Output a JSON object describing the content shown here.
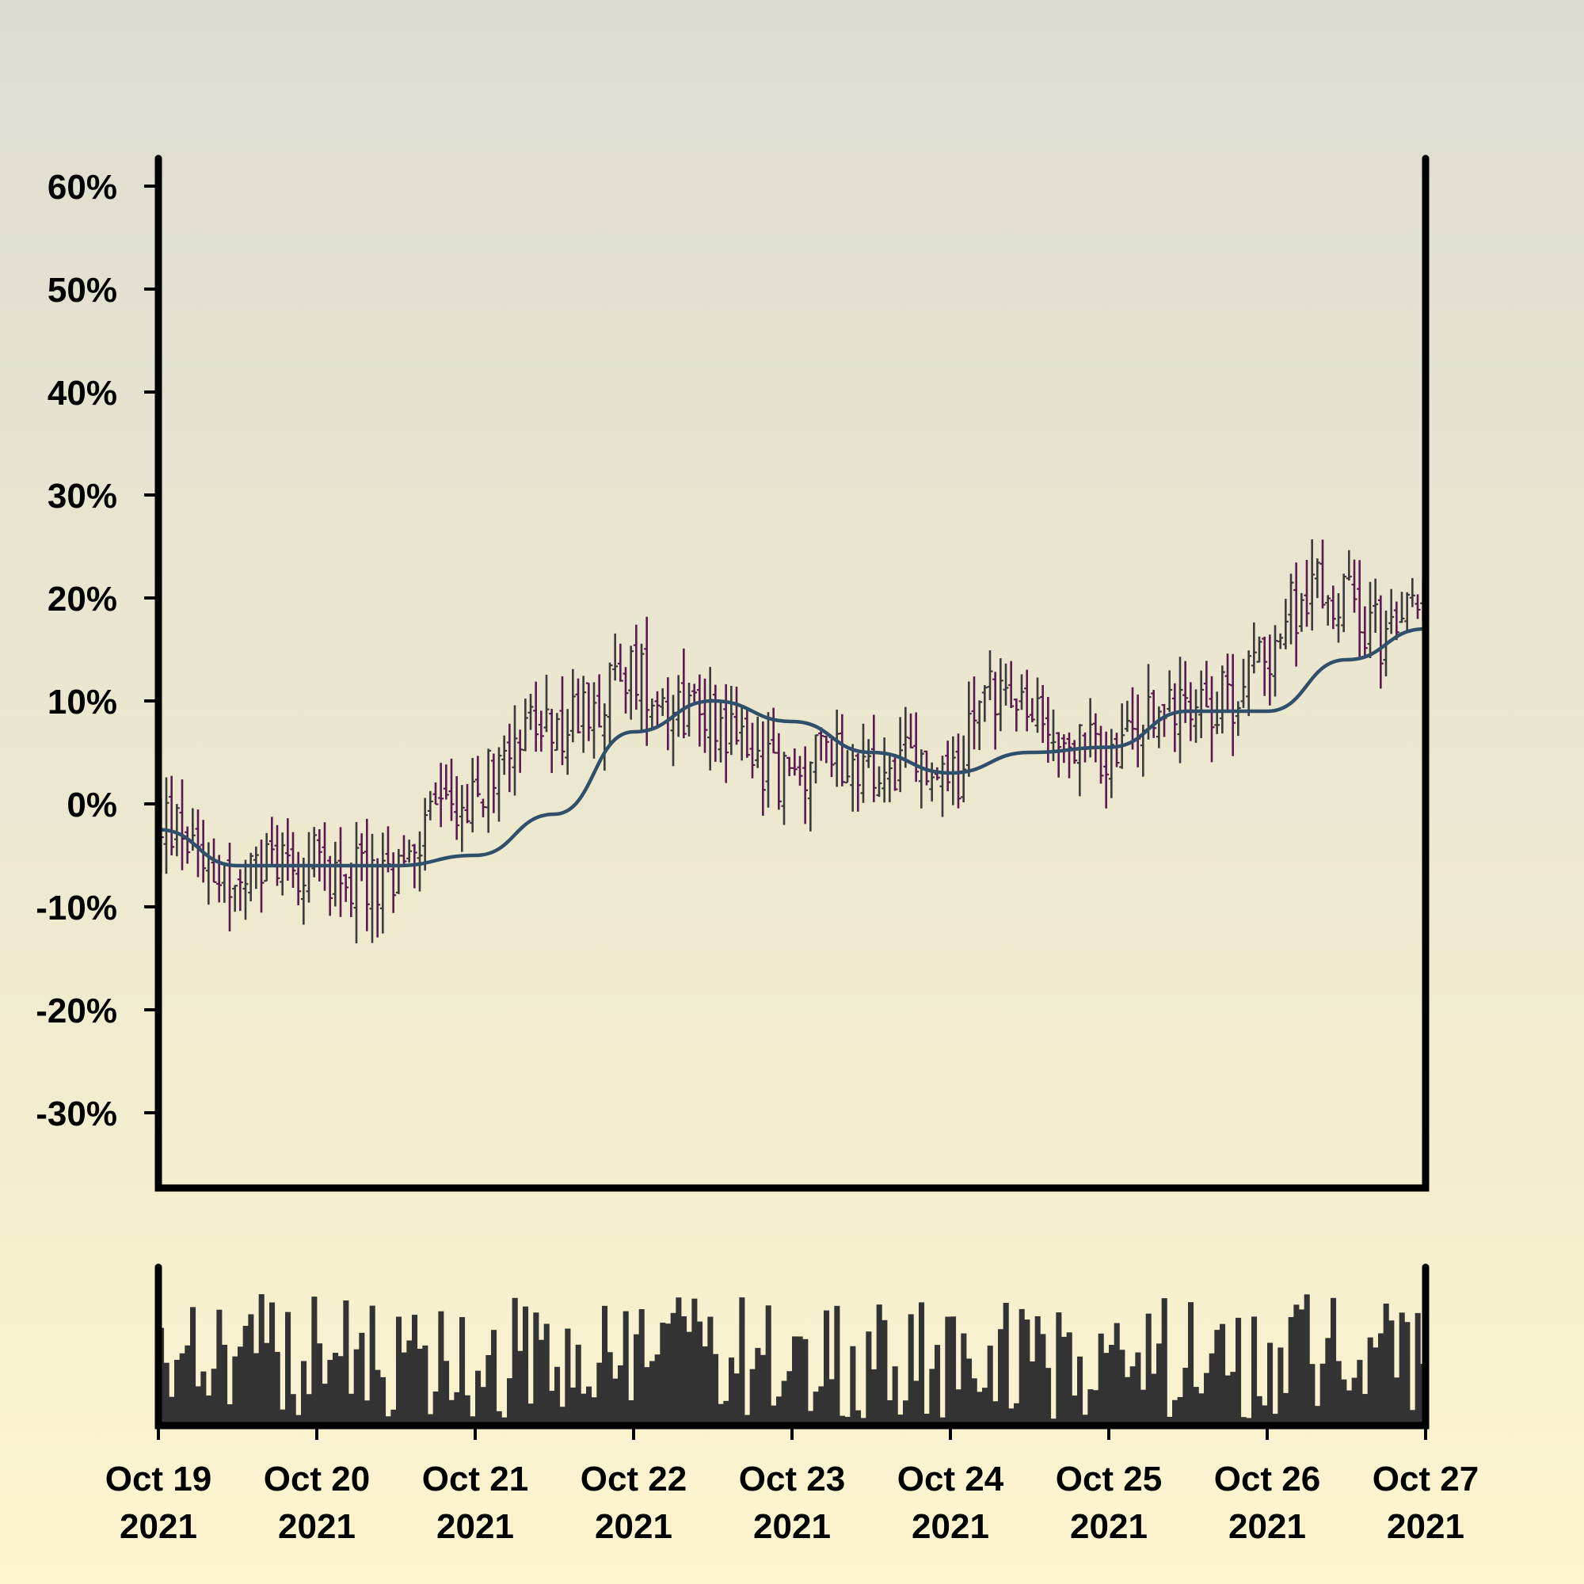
{
  "chart_data": {
    "type": "ohlc",
    "y_unit": "%",
    "ylim": [
      -37,
      63
    ],
    "y_ticks": [
      "60%",
      "50%",
      "40%",
      "30%",
      "20%",
      "10%",
      "0%",
      "-10%",
      "-20%",
      "-30%"
    ],
    "y_tick_values": [
      60,
      50,
      40,
      30,
      20,
      10,
      0,
      -10,
      -20,
      -30
    ],
    "x_range": [
      "2021-10-19",
      "2021-10-27"
    ],
    "x_ticks": [
      {
        "date": "2021-10-19",
        "line1": "Oct 19",
        "line2": "2021"
      },
      {
        "date": "2021-10-20",
        "line1": "Oct 20",
        "line2": "2021"
      },
      {
        "date": "2021-10-21",
        "line1": "Oct 21",
        "line2": "2021"
      },
      {
        "date": "2021-10-22",
        "line1": "Oct 22",
        "line2": "2021"
      },
      {
        "date": "2021-10-23",
        "line1": "Oct 23",
        "line2": "2021"
      },
      {
        "date": "2021-10-24",
        "line1": "Oct 24",
        "line2": "2021"
      },
      {
        "date": "2021-10-25",
        "line1": "Oct 25",
        "line2": "2021"
      },
      {
        "date": "2021-10-26",
        "line1": "Oct 26",
        "line2": "2021"
      },
      {
        "date": "2021-10-27",
        "line1": "Oct 27",
        "line2": "2021"
      }
    ],
    "close_trend": [
      {
        "date": "2021-10-19 00:00",
        "value": -2
      },
      {
        "date": "2021-10-19 06:00",
        "value": -3
      },
      {
        "date": "2021-10-19 12:00",
        "value": -9
      },
      {
        "date": "2021-10-19 18:00",
        "value": -5
      },
      {
        "date": "2021-10-20 00:00",
        "value": -6
      },
      {
        "date": "2021-10-20 06:00",
        "value": -7
      },
      {
        "date": "2021-10-20 12:00",
        "value": -8
      },
      {
        "date": "2021-10-20 18:00",
        "value": 0
      },
      {
        "date": "2021-10-21 00:00",
        "value": 0
      },
      {
        "date": "2021-10-21 06:00",
        "value": 8
      },
      {
        "date": "2021-10-21 12:00",
        "value": 6
      },
      {
        "date": "2021-10-21 18:00",
        "value": 10
      },
      {
        "date": "2021-10-22 00:00",
        "value": 13
      },
      {
        "date": "2021-10-22 06:00",
        "value": 10
      },
      {
        "date": "2021-10-22 12:00",
        "value": 9
      },
      {
        "date": "2021-10-22 18:00",
        "value": 5
      },
      {
        "date": "2021-10-23 00:00",
        "value": 2
      },
      {
        "date": "2021-10-23 06:00",
        "value": 6
      },
      {
        "date": "2021-10-23 12:00",
        "value": 2
      },
      {
        "date": "2021-10-23 18:00",
        "value": 4
      },
      {
        "date": "2021-10-24 00:00",
        "value": 1
      },
      {
        "date": "2021-10-24 06:00",
        "value": 12
      },
      {
        "date": "2021-10-24 12:00",
        "value": 8
      },
      {
        "date": "2021-10-24 18:00",
        "value": 6
      },
      {
        "date": "2021-10-25 00:00",
        "value": 4
      },
      {
        "date": "2021-10-25 06:00",
        "value": 8
      },
      {
        "date": "2021-10-25 12:00",
        "value": 11
      },
      {
        "date": "2021-10-25 18:00",
        "value": 10
      },
      {
        "date": "2021-10-26 00:00",
        "value": 15
      },
      {
        "date": "2021-10-26 06:00",
        "value": 21
      },
      {
        "date": "2021-10-26 12:00",
        "value": 20
      },
      {
        "date": "2021-10-26 18:00",
        "value": 16
      },
      {
        "date": "2021-10-27 00:00",
        "value": 20
      }
    ],
    "moving_average": [
      {
        "date": "2021-10-19 00:00",
        "value": -2.5
      },
      {
        "date": "2021-10-19 12:00",
        "value": -6
      },
      {
        "date": "2021-10-20 00:00",
        "value": -6
      },
      {
        "date": "2021-10-20 12:00",
        "value": -6
      },
      {
        "date": "2021-10-21 00:00",
        "value": -5
      },
      {
        "date": "2021-10-21 12:00",
        "value": -1
      },
      {
        "date": "2021-10-22 00:00",
        "value": 7
      },
      {
        "date": "2021-10-22 12:00",
        "value": 10
      },
      {
        "date": "2021-10-23 00:00",
        "value": 8
      },
      {
        "date": "2021-10-23 12:00",
        "value": 5
      },
      {
        "date": "2021-10-24 00:00",
        "value": 3
      },
      {
        "date": "2021-10-24 12:00",
        "value": 5
      },
      {
        "date": "2021-10-25 00:00",
        "value": 5.5
      },
      {
        "date": "2021-10-25 12:00",
        "value": 9
      },
      {
        "date": "2021-10-26 00:00",
        "value": 9
      },
      {
        "date": "2021-10-26 12:00",
        "value": 14
      },
      {
        "date": "2021-10-27 00:00",
        "value": 17
      }
    ],
    "colors": {
      "up": "#3a3a3a",
      "down": "#5a1a4e",
      "moving_average": "#2f4f6b",
      "volume": "#333333",
      "axes": "#000000"
    },
    "grid": false,
    "legend": "none",
    "volume_panel": true
  }
}
